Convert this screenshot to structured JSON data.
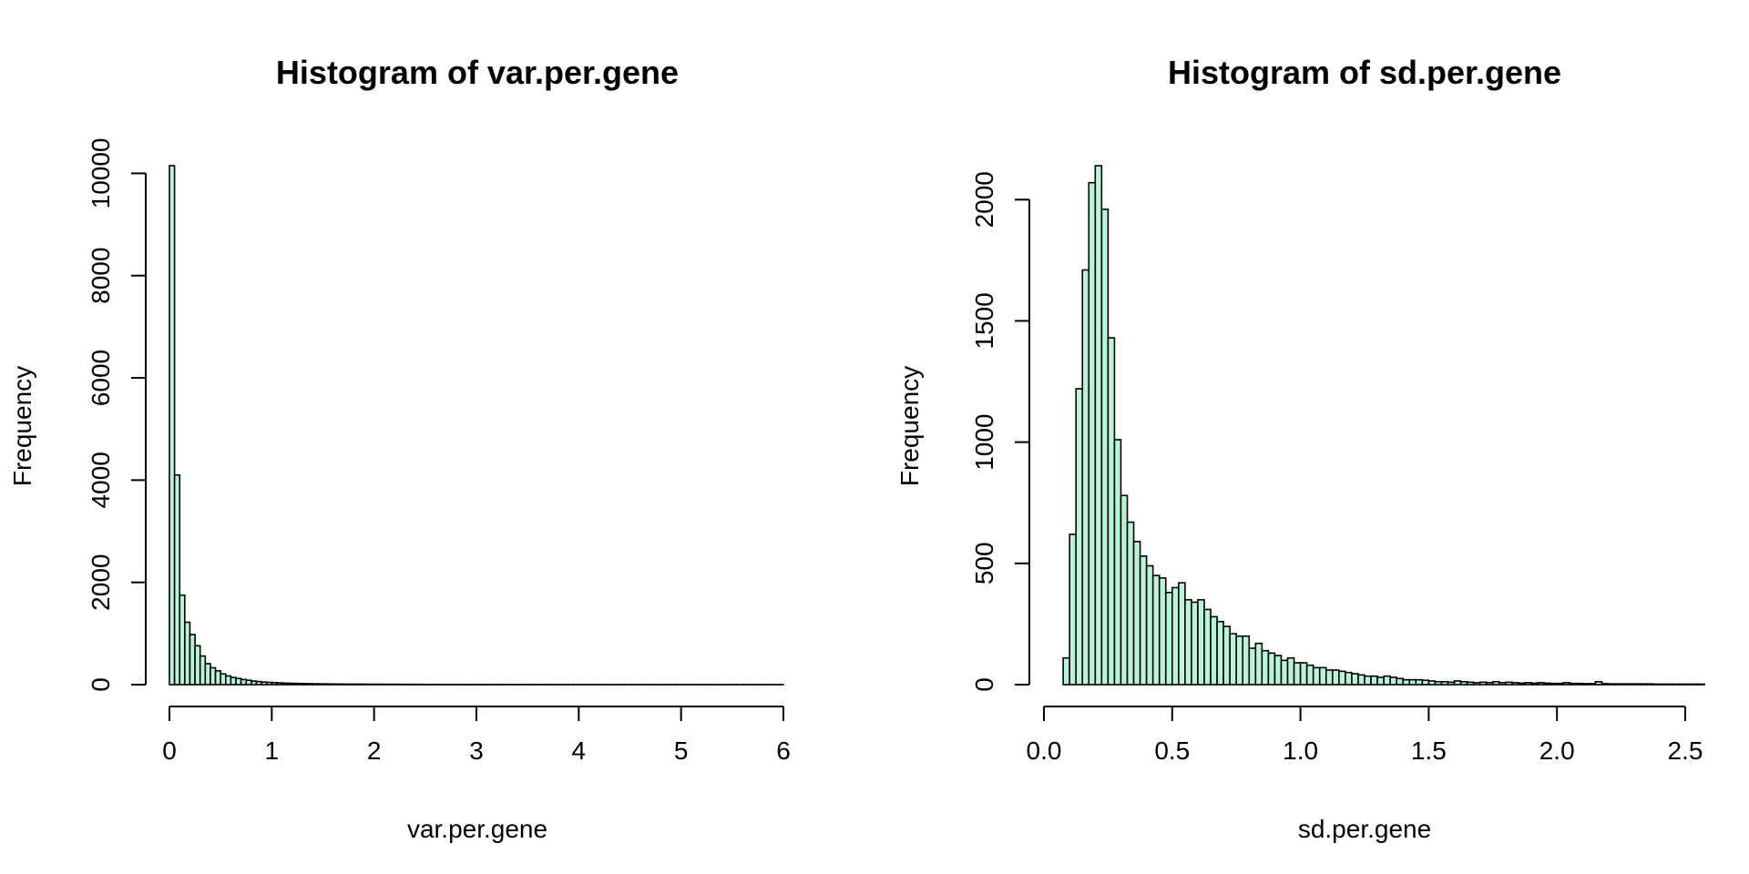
{
  "colors": {
    "bar_fill": "#b8f5d8",
    "bar_stroke": "#000000",
    "axis": "#000000",
    "background": "#ffffff"
  },
  "chart_data": [
    {
      "type": "bar",
      "title": "Histogram of var.per.gene",
      "xlabel": "var.per.gene",
      "ylabel": "Frequency",
      "bin_width": 0.05,
      "bin_start": 0,
      "values": [
        10150,
        4100,
        1750,
        1220,
        980,
        760,
        560,
        410,
        330,
        270,
        210,
        170,
        140,
        120,
        100,
        85,
        70,
        60,
        50,
        45,
        40,
        35,
        30,
        27,
        25,
        22,
        20,
        18,
        16,
        15,
        14,
        13,
        12,
        11,
        10,
        10,
        9,
        9,
        8,
        8,
        7,
        7,
        7,
        6,
        6,
        6,
        5,
        5,
        5,
        5,
        4,
        4,
        4,
        4,
        4,
        3,
        3,
        3,
        3,
        3,
        3,
        3,
        3,
        2,
        2,
        2,
        2,
        2,
        2,
        2,
        2,
        2,
        2,
        2,
        2,
        1,
        1,
        1,
        1,
        1,
        1,
        1,
        1,
        1,
        1,
        1,
        1,
        1,
        1,
        1,
        1,
        1,
        1,
        1,
        1,
        1,
        1,
        1,
        1,
        1,
        1,
        1,
        1,
        1,
        1,
        1,
        1,
        1,
        1,
        1,
        1,
        1,
        1,
        1,
        1,
        1,
        1,
        1,
        1,
        1
      ],
      "x_ticks": [
        0,
        1,
        2,
        3,
        4,
        5,
        6
      ],
      "x_tick_labels": [
        "0",
        "1",
        "2",
        "3",
        "4",
        "5",
        "6"
      ],
      "y_ticks": [
        0,
        2000,
        4000,
        6000,
        8000,
        10000
      ],
      "y_tick_labels": [
        "0",
        "2000",
        "4000",
        "6000",
        "8000",
        "10000"
      ],
      "xlim": [
        0,
        6
      ],
      "ylim": [
        0,
        10150
      ],
      "grid": false,
      "legend": "none"
    },
    {
      "type": "bar",
      "title": "Histogram of sd.per.gene",
      "xlabel": "sd.per.gene",
      "ylabel": "Frequency",
      "bin_width": 0.025,
      "bin_start": 0.075,
      "values": [
        110,
        620,
        1220,
        1710,
        2070,
        2140,
        1960,
        1430,
        1010,
        780,
        670,
        590,
        530,
        490,
        450,
        440,
        380,
        400,
        420,
        350,
        340,
        350,
        310,
        280,
        260,
        240,
        210,
        200,
        200,
        150,
        170,
        140,
        130,
        120,
        100,
        110,
        90,
        90,
        80,
        70,
        70,
        60,
        60,
        55,
        50,
        45,
        40,
        35,
        35,
        30,
        35,
        30,
        25,
        20,
        20,
        20,
        18,
        15,
        12,
        12,
        10,
        15,
        12,
        10,
        8,
        10,
        8,
        12,
        8,
        10,
        8,
        6,
        8,
        6,
        8,
        6,
        5,
        5,
        8,
        5,
        5,
        4,
        4,
        12,
        4,
        3,
        3,
        3,
        3,
        3,
        3,
        3,
        2,
        2,
        2,
        2,
        2,
        2,
        2,
        2
      ],
      "x_ticks": [
        0,
        0.5,
        1,
        1.5,
        2,
        2.5
      ],
      "x_tick_labels": [
        "0.0",
        "0.5",
        "1.0",
        "1.5",
        "2.0",
        "2.5"
      ],
      "y_ticks": [
        0,
        500,
        1000,
        1500,
        2000
      ],
      "y_tick_labels": [
        "0",
        "500",
        "1000",
        "1500",
        "2000"
      ],
      "xlim": [
        0,
        2.5
      ],
      "ylim": [
        0,
        2140
      ],
      "grid": false,
      "legend": "none"
    }
  ]
}
